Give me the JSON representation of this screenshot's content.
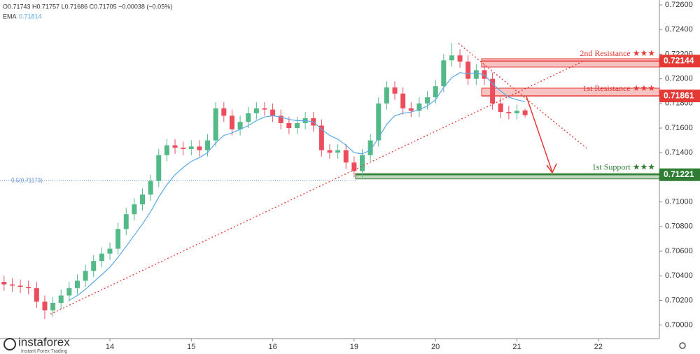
{
  "chart_data": {
    "type": "candlestick",
    "header": {
      "ohlc": "O0.71743 H0.71757 L0.71686 C0.71705 −0.00038 (−0.05%)",
      "ema_label": "EMA",
      "ema_value": "0.71814"
    },
    "categories": [
      null,
      null,
      null,
      null,
      null,
      null,
      null,
      null,
      null,
      null,
      null,
      null,
      null,
      "14",
      null,
      null,
      null,
      null,
      null,
      null,
      null,
      null,
      null,
      "15",
      null,
      null,
      null,
      null,
      null,
      null,
      null,
      null,
      null,
      "16",
      null,
      null,
      null,
      null,
      null,
      null,
      null,
      null,
      null,
      "19",
      null,
      null,
      null,
      null,
      null,
      null,
      null,
      null,
      null,
      "20",
      null,
      null,
      null,
      null,
      null,
      null,
      null,
      null,
      null,
      "21",
      null,
      null,
      null,
      null,
      null,
      null,
      null,
      null,
      null,
      "22",
      null,
      null,
      null,
      null,
      null,
      null,
      null
    ],
    "open": [
      0.7035,
      0.7033,
      0.7032,
      0.7031,
      0.703,
      0.7019,
      0.7012,
      0.7018,
      0.7024,
      0.703,
      0.7036,
      0.7044,
      0.7052,
      0.7058,
      0.7062,
      0.7078,
      0.709,
      0.7098,
      0.7106,
      0.7117,
      0.7138,
      0.7146,
      0.7144,
      0.7143,
      0.7145,
      0.7142,
      0.715,
      0.7176,
      0.717,
      0.7159,
      0.7165,
      0.7172,
      0.7176,
      0.7175,
      0.717,
      0.7164,
      0.716,
      0.7164,
      0.7168,
      0.7162,
      0.7142,
      0.714,
      0.7142,
      0.7132,
      0.7125,
      0.7138,
      0.715,
      0.718,
      0.7193,
      0.7188,
      0.7176,
      0.7174,
      0.718,
      0.7185,
      0.7194,
      0.7215,
      0.7219,
      0.7214,
      0.72,
      0.7207,
      0.72,
      0.718,
      0.7173,
      0.7172,
      0.71743,
      null,
      null,
      null,
      null,
      null,
      null,
      null,
      null,
      null,
      null,
      null,
      null,
      null,
      null,
      null,
      null
    ],
    "high": [
      0.704,
      0.7038,
      0.7037,
      0.7036,
      0.7035,
      0.7024,
      0.7023,
      0.7029,
      0.7035,
      0.7041,
      0.7049,
      0.7057,
      0.7063,
      0.7067,
      0.7083,
      0.7095,
      0.7103,
      0.7111,
      0.7122,
      0.7143,
      0.7151,
      0.7151,
      0.7149,
      0.715,
      0.715,
      0.7155,
      0.7181,
      0.7181,
      0.7175,
      0.717,
      0.7177,
      0.7181,
      0.7181,
      0.718,
      0.7175,
      0.7169,
      0.7169,
      0.7173,
      0.7173,
      0.7167,
      0.7147,
      0.7147,
      0.7147,
      0.7137,
      0.7143,
      0.7155,
      0.7185,
      0.7198,
      0.7198,
      0.7193,
      0.7181,
      0.7185,
      0.719,
      0.7199,
      0.722,
      0.7229,
      0.7224,
      0.7219,
      0.7212,
      0.7212,
      0.7205,
      0.7185,
      0.7178,
      0.7179,
      0.71757,
      null,
      null,
      null,
      null,
      null,
      null,
      null,
      null,
      null,
      null,
      null,
      null,
      null,
      null,
      null,
      null
    ],
    "low": [
      0.7028,
      0.7027,
      0.7026,
      0.7025,
      0.7014,
      0.7005,
      0.7007,
      0.7013,
      0.7019,
      0.7025,
      0.7031,
      0.7039,
      0.7047,
      0.7053,
      0.7057,
      0.7073,
      0.7085,
      0.7093,
      0.7101,
      0.7112,
      0.7133,
      0.7139,
      0.7138,
      0.7138,
      0.7137,
      0.7137,
      0.7145,
      0.7165,
      0.7154,
      0.7154,
      0.716,
      0.7167,
      0.717,
      0.7165,
      0.7159,
      0.7155,
      0.7155,
      0.7159,
      0.7157,
      0.7137,
      0.7135,
      0.7135,
      0.7127,
      0.712,
      0.712,
      0.7133,
      0.7145,
      0.7175,
      0.7183,
      0.7171,
      0.7169,
      0.7169,
      0.7175,
      0.718,
      0.7189,
      0.721,
      0.7209,
      0.7195,
      0.7195,
      0.7195,
      0.7175,
      0.7168,
      0.7167,
      0.7167,
      0.71686,
      null,
      null,
      null,
      null,
      null,
      null,
      null,
      null,
      null,
      null,
      null,
      null,
      null,
      null,
      null,
      null
    ],
    "close": [
      0.7033,
      0.7032,
      0.7031,
      0.703,
      0.7019,
      0.7012,
      0.7018,
      0.7024,
      0.703,
      0.7036,
      0.7044,
      0.7052,
      0.7058,
      0.7062,
      0.7078,
      0.709,
      0.7098,
      0.7106,
      0.7117,
      0.7138,
      0.7146,
      0.7144,
      0.7143,
      0.7145,
      0.7142,
      0.715,
      0.7176,
      0.717,
      0.7159,
      0.7165,
      0.7172,
      0.7176,
      0.7175,
      0.717,
      0.7164,
      0.716,
      0.7164,
      0.7168,
      0.7162,
      0.7142,
      0.714,
      0.7142,
      0.7132,
      0.7125,
      0.7138,
      0.715,
      0.718,
      0.7193,
      0.7188,
      0.7176,
      0.7174,
      0.718,
      0.7185,
      0.7194,
      0.7215,
      0.7219,
      0.7214,
      0.72,
      0.7207,
      0.72,
      0.718,
      0.7173,
      0.7172,
      0.7174,
      0.71705,
      null,
      null,
      null,
      null,
      null,
      null,
      null,
      null,
      null,
      null,
      null,
      null,
      null,
      null,
      null,
      null
    ],
    "ema": {
      "color": "#5aa9e6",
      "values": [
        null,
        null,
        null,
        null,
        null,
        null,
        null,
        null,
        0.702,
        0.7024,
        0.7029,
        0.7035,
        0.7041,
        0.7047,
        0.7055,
        0.7064,
        0.7073,
        0.7082,
        0.7092,
        0.7104,
        0.7114,
        0.7122,
        0.7128,
        0.7133,
        0.7136,
        0.714,
        0.7148,
        0.7154,
        0.7156,
        0.7159,
        0.7162,
        0.7166,
        0.7169,
        0.717,
        0.7169,
        0.7167,
        0.7166,
        0.7166,
        0.7165,
        0.7159,
        0.7154,
        0.7151,
        0.7146,
        0.714,
        0.7139,
        0.7142,
        0.7152,
        0.7163,
        0.717,
        0.7172,
        0.7173,
        0.7175,
        0.7178,
        0.7183,
        0.7193,
        0.7201,
        0.7205,
        0.7204,
        0.7205,
        0.7203,
        0.7196,
        0.719,
        0.7185,
        0.7183,
        0.71814,
        null,
        null,
        null,
        null,
        null,
        null,
        null,
        null,
        null,
        null,
        null,
        null,
        null,
        null,
        null,
        null
      ]
    },
    "up_color": "#53b987",
    "down_color": "#eb4d5c",
    "levels": [
      {
        "name": "2nd Resistance ★★★",
        "value": 0.72144,
        "zone": [
          0.72095,
          0.72163
        ],
        "color": "#e53935"
      },
      {
        "name": "1st Resistance ★★★",
        "value": 0.71861,
        "zone": [
          0.71862,
          0.71924
        ],
        "color": "#e53935"
      },
      {
        "name": "1st Support ★★★",
        "value": 0.71221,
        "zone": [
          0.71187,
          0.71232
        ],
        "color": "#2e7d32"
      }
    ],
    "fib": {
      "label": "0.5(0.71173)",
      "value": 0.71173
    },
    "ylim": [
      0.6989,
      0.7264
    ],
    "yticks": [
      {
        "value": 0.7,
        "label": "0.70000"
      },
      {
        "value": 0.702,
        "label": "0.70200"
      },
      {
        "value": 0.704,
        "label": "0.70400"
      },
      {
        "value": 0.706,
        "label": "0.70600"
      },
      {
        "value": 0.708,
        "label": "0.70800"
      },
      {
        "value": 0.71,
        "label": "0.71000"
      },
      {
        "value": 0.712,
        "label": "0.71200"
      },
      {
        "value": 0.714,
        "label": "0.71400"
      },
      {
        "value": 0.716,
        "label": "0.71600"
      },
      {
        "value": 0.718,
        "label": "0.71800"
      },
      {
        "value": 0.72,
        "label": "0.72000"
      },
      {
        "value": 0.722,
        "label": "0.72200"
      },
      {
        "value": 0.724,
        "label": "0.72400"
      },
      {
        "value": 0.726,
        "label": "0.72600"
      }
    ]
  },
  "logo": {
    "name": "instaforex",
    "tagline": "Instant Forex Trading"
  }
}
